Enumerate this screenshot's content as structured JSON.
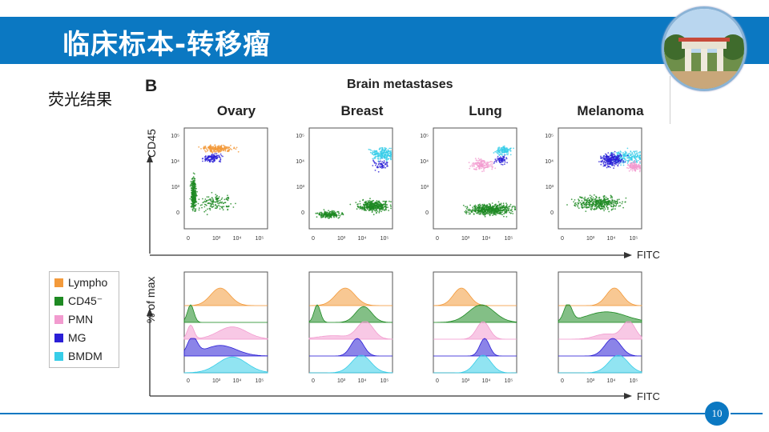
{
  "header": {
    "title": "临床标本-转移瘤"
  },
  "logo": {
    "icon": "university-gate-photo"
  },
  "subtitle": "荧光结果",
  "figure": {
    "panel_letter": "B",
    "title": "Brain metastases",
    "columns": [
      "Ovary",
      "Breast",
      "Lung",
      "Melanoma"
    ],
    "scatter_y_label": "CD45",
    "x_axis_label": "FITC",
    "hist_y_label": "% of max",
    "y_ticks": [
      "10⁵",
      "10⁴",
      "10³",
      "0"
    ],
    "x_ticks": [
      "0",
      "10³",
      "10⁴",
      "10⁵"
    ]
  },
  "legend": {
    "items": [
      {
        "label": "Lympho",
        "color": "#f39a3b"
      },
      {
        "label": "CD45⁻",
        "color": "#1e8a23"
      },
      {
        "label": "PMN",
        "color": "#f29bcf"
      },
      {
        "label": "MG",
        "color": "#2b1fd6"
      },
      {
        "label": "BMDM",
        "color": "#37cde8"
      }
    ]
  },
  "colors": {
    "title_bar": "#0b78c2",
    "lympho": "#f39a3b",
    "cd45neg": "#1e8a23",
    "pmn": "#f29bcf",
    "mg": "#2b1fd6",
    "bmdm": "#37cde8"
  },
  "footer": {
    "page_number": "10"
  }
}
